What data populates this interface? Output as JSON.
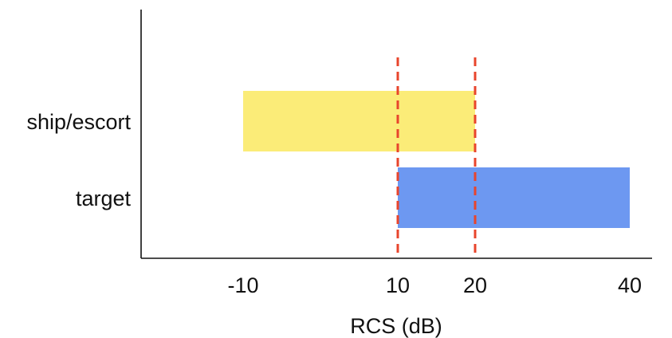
{
  "chart_data": {
    "type": "bar",
    "orientation": "horizontal",
    "categories": [
      "ship/escort",
      "target"
    ],
    "ranges": [
      {
        "category": "ship/escort",
        "from": -10,
        "to": 20,
        "color": "#fbec78"
      },
      {
        "category": "target",
        "from": 10,
        "to": 40,
        "color": "#6d98f1"
      }
    ],
    "xlabel": "RCS (dB)",
    "ylabel": "",
    "xticks": [
      -10,
      10,
      20,
      40
    ],
    "tick_labels": [
      "-10",
      "10",
      "20",
      "40"
    ],
    "reference_lines": [
      {
        "x": 10,
        "style": "dashed",
        "color": "#e8452c"
      },
      {
        "x": 20,
        "style": "dashed",
        "color": "#e8452c"
      }
    ],
    "grid": false,
    "legend": "none"
  }
}
